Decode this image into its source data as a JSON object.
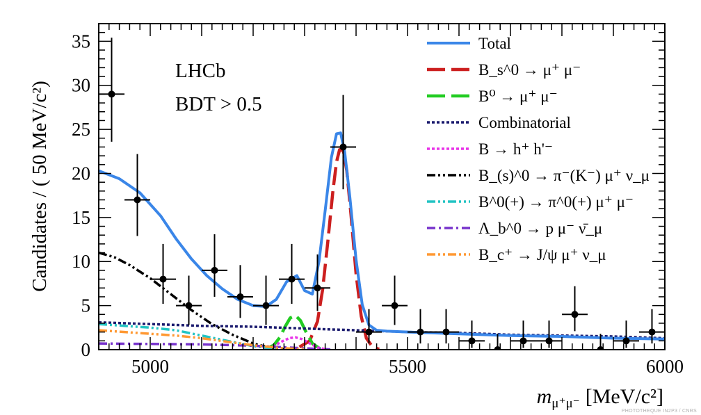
{
  "chart_data": {
    "type": "scatter",
    "xlabel": {
      "main": "m",
      "sub": "μ⁺μ⁻",
      "unit": "[MeV/c²]"
    },
    "ylabel": "Candidates / ( 50 MeV/c²)",
    "xlim": [
      4900,
      6000
    ],
    "ylim": [
      0,
      37
    ],
    "x_ticks": [
      5000,
      5500,
      6000
    ],
    "y_ticks": [
      0,
      5,
      10,
      15,
      20,
      25,
      30,
      35
    ],
    "annotations": [
      "LHCb",
      "BDT > 0.5"
    ],
    "legend_position": "top-right",
    "data_points": {
      "x": [
        4925,
        4975,
        5025,
        5075,
        5125,
        5175,
        5225,
        5275,
        5325,
        5375,
        5425,
        5475,
        5525,
        5575,
        5625,
        5675,
        5725,
        5775,
        5825,
        5875,
        5925,
        5975
      ],
      "y": [
        29,
        17,
        8,
        5,
        9,
        6,
        5,
        8,
        7,
        23,
        2,
        5,
        2,
        2,
        1,
        0,
        1,
        1,
        4,
        0,
        1,
        2
      ],
      "err_up": [
        6.4,
        5.2,
        4.0,
        3.4,
        4.1,
        3.6,
        3.4,
        4.0,
        3.8,
        5.9,
        2.6,
        3.4,
        2.6,
        2.6,
        2.3,
        1.8,
        2.3,
        2.3,
        3.2,
        1.8,
        2.3,
        2.6
      ],
      "err_down": [
        5.4,
        4.1,
        2.8,
        2.2,
        3.0,
        2.4,
        2.2,
        2.8,
        2.6,
        4.8,
        1.3,
        2.2,
        1.3,
        1.3,
        0.8,
        0,
        0.8,
        0.8,
        1.9,
        0,
        0.8,
        1.3
      ]
    },
    "series": [
      {
        "name": "Total",
        "color": "#3a86e8",
        "style": "solid",
        "x": [
          4900,
          4940,
          4980,
          5020,
          5050,
          5080,
          5110,
          5140,
          5170,
          5200,
          5225,
          5245,
          5265,
          5285,
          5300,
          5315,
          5328,
          5340,
          5352,
          5362,
          5370,
          5378,
          5388,
          5400,
          5412,
          5425,
          5440,
          5460,
          5500,
          5600,
          5700,
          5800,
          5900,
          6000
        ],
        "y": [
          20.3,
          19.4,
          17.8,
          15.2,
          12.6,
          10.3,
          8.4,
          6.9,
          5.7,
          5.0,
          4.9,
          5.7,
          7.7,
          8.4,
          6.7,
          6.3,
          10.0,
          15.8,
          21.8,
          24.5,
          24.6,
          22.4,
          17.3,
          10.2,
          5.1,
          2.8,
          2.2,
          2.1,
          2.0,
          1.8,
          1.6,
          1.5,
          1.3,
          1.2
        ]
      },
      {
        "name": "B_s^0 → μ⁺ μ⁻",
        "color": "#cc1f1f",
        "style": "dash",
        "x": [
          5290,
          5310,
          5325,
          5335,
          5345,
          5355,
          5362,
          5368,
          5375,
          5382,
          5390,
          5400,
          5410,
          5420,
          5432,
          5445
        ],
        "y": [
          0.3,
          1.0,
          3.2,
          6.8,
          12.2,
          18.0,
          21.3,
          22.7,
          22.6,
          20.3,
          15.4,
          8.6,
          3.8,
          1.3,
          0.3,
          0.05
        ]
      },
      {
        "name": "B⁰ → μ⁺ μ⁻",
        "color": "#22cc22",
        "style": "dash",
        "x": [
          5225,
          5240,
          5252,
          5262,
          5272,
          5282,
          5292,
          5302,
          5315,
          5330
        ],
        "y": [
          0.1,
          0.5,
          1.4,
          2.6,
          3.6,
          3.9,
          3.3,
          2.1,
          0.7,
          0.1
        ]
      },
      {
        "name": "Combinatorial",
        "color": "#1a1a6e",
        "style": "dot",
        "x": [
          4900,
          5000,
          5100,
          5200,
          5300,
          5400,
          5500,
          5600,
          5700,
          5800,
          5900,
          6000
        ],
        "y": [
          3.1,
          2.9,
          2.7,
          2.6,
          2.4,
          2.2,
          2.0,
          1.9,
          1.7,
          1.6,
          1.5,
          1.3
        ]
      },
      {
        "name": "B → h⁺ h'⁻",
        "color": "#e833e8",
        "style": "dot",
        "x": [
          5220,
          5240,
          5255,
          5270,
          5282,
          5295,
          5310,
          5325,
          5340
        ],
        "y": [
          0.05,
          0.4,
          0.9,
          1.3,
          1.4,
          1.2,
          0.7,
          0.25,
          0.05
        ]
      },
      {
        "name": "B_(s)^0 → π⁻(K⁻) μ⁺ ν_μ",
        "color": "#000000",
        "style": "dashdotdot",
        "x": [
          4900,
          4930,
          4960,
          5000,
          5040,
          5080,
          5120,
          5160,
          5200,
          5230,
          5260
        ],
        "y": [
          11.0,
          10.5,
          9.6,
          8.1,
          6.3,
          4.5,
          2.9,
          1.7,
          0.7,
          0.25,
          0.05
        ]
      },
      {
        "name": "B^0(+) → π^0(+) μ⁺ μ⁻",
        "color": "#22c4c4",
        "style": "dashdotdot",
        "x": [
          4900,
          4950,
          5000,
          5050,
          5100,
          5150,
          5200,
          5250
        ],
        "y": [
          2.9,
          2.7,
          2.5,
          2.2,
          1.6,
          1.0,
          0.4,
          0.05
        ]
      },
      {
        "name": "Λ_b^0 → p μ⁻ ν̄_μ",
        "color": "#7733cc",
        "style": "dashdot",
        "x": [
          4900,
          5000,
          5100,
          5200,
          5250,
          5300,
          5350
        ],
        "y": [
          0.7,
          0.65,
          0.6,
          0.45,
          0.3,
          0.15,
          0.03
        ]
      },
      {
        "name": "B_c⁺ → J/ψ μ⁺ ν_μ",
        "color": "#ff9933",
        "style": "dashdotdot",
        "x": [
          4900,
          4950,
          5000,
          5050,
          5100,
          5150,
          5200,
          5250,
          5300
        ],
        "y": [
          2.2,
          2.0,
          1.8,
          1.6,
          1.3,
          0.9,
          0.5,
          0.2,
          0.05
        ]
      }
    ]
  },
  "credit": "PHOTOTHEQUE IN2P3 / CNRS"
}
